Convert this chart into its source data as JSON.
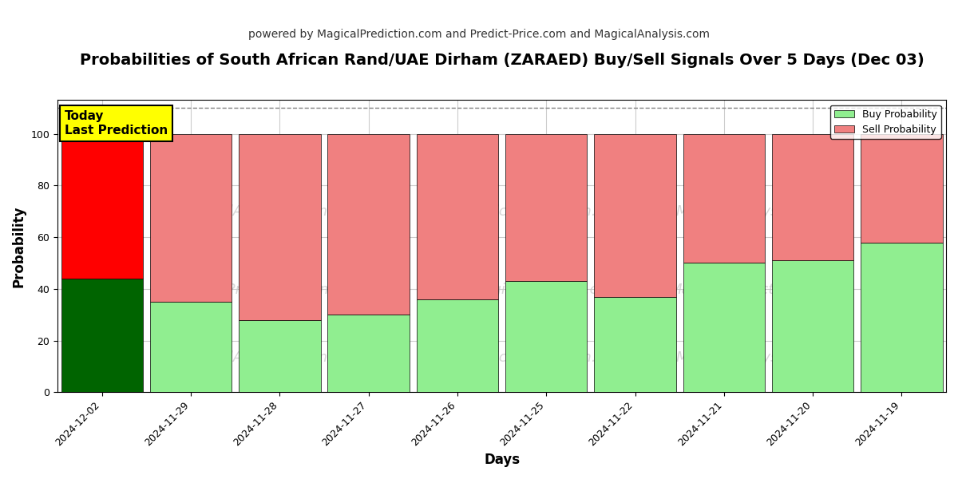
{
  "title": "Probabilities of South African Rand/UAE Dirham (ZARAED) Buy/Sell Signals Over 5 Days (Dec 03)",
  "subtitle": "powered by MagicalPrediction.com and Predict-Price.com and MagicalAnalysis.com",
  "xlabel": "Days",
  "ylabel": "Probability",
  "categories": [
    "2024-12-02",
    "2024-11-29",
    "2024-11-28",
    "2024-11-27",
    "2024-11-26",
    "2024-11-25",
    "2024-11-22",
    "2024-11-21",
    "2024-11-20",
    "2024-11-19"
  ],
  "buy_values": [
    44,
    35,
    28,
    30,
    36,
    43,
    37,
    50,
    51,
    58
  ],
  "sell_values": [
    56,
    65,
    72,
    70,
    64,
    57,
    63,
    50,
    49,
    42
  ],
  "today_bar_buy_color": "#006400",
  "today_bar_sell_color": "#ff0000",
  "other_bar_buy_color": "#90ee90",
  "other_bar_sell_color": "#f08080",
  "bar_edgecolor": "#000000",
  "today_annotation_text": "Today\nLast Prediction",
  "today_annotation_bg": "#ffff00",
  "today_annotation_fontsize": 11,
  "legend_buy_label": "Buy Probability",
  "legend_sell_label": "Sell Probability",
  "ylim": [
    0,
    113
  ],
  "yticks": [
    0,
    20,
    40,
    60,
    80,
    100
  ],
  "dashed_line_y": 110,
  "background_color": "#ffffff",
  "grid_color": "#cccccc",
  "title_fontsize": 14,
  "subtitle_fontsize": 10,
  "axis_label_fontsize": 12,
  "tick_fontsize": 9
}
